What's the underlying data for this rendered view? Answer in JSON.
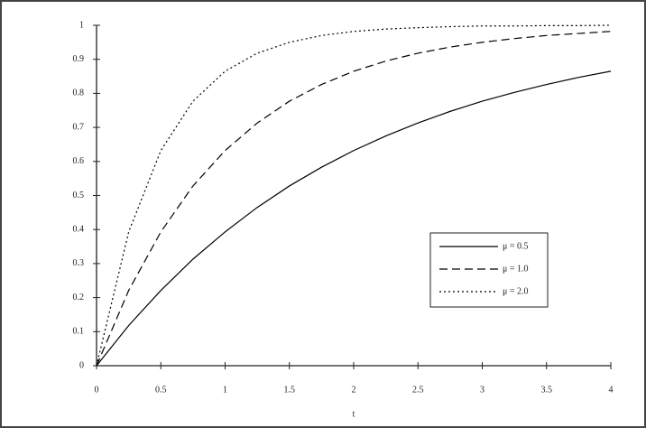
{
  "chart_data": {
    "type": "line",
    "x_label": "t",
    "x": [
      0,
      0.25,
      0.5,
      0.75,
      1,
      1.25,
      1.5,
      1.75,
      2,
      2.25,
      2.5,
      2.75,
      3,
      3.25,
      3.5,
      3.75,
      4
    ],
    "series": [
      {
        "name": "μ = 0.5",
        "color": "#000000",
        "dash": "solid",
        "values": [
          0,
          0.118,
          0.221,
          0.313,
          0.393,
          0.465,
          0.528,
          0.583,
          0.632,
          0.675,
          0.713,
          0.747,
          0.777,
          0.803,
          0.826,
          0.847,
          0.865
        ]
      },
      {
        "name": "μ = 1.0",
        "color": "#000000",
        "dash": "dashed",
        "values": [
          0,
          0.221,
          0.393,
          0.528,
          0.632,
          0.713,
          0.777,
          0.826,
          0.865,
          0.895,
          0.918,
          0.936,
          0.95,
          0.961,
          0.97,
          0.976,
          0.982
        ]
      },
      {
        "name": "μ = 2.0",
        "color": "#000000",
        "dash": "dotted",
        "values": [
          0,
          0.393,
          0.632,
          0.777,
          0.865,
          0.918,
          0.95,
          0.97,
          0.982,
          0.989,
          0.993,
          0.996,
          0.998,
          0.998,
          0.999,
          0.999,
          1.0
        ]
      }
    ],
    "xlim": [
      0,
      4
    ],
    "xticks": [
      0,
      0.5,
      1,
      1.5,
      2,
      2.5,
      3,
      3.5,
      4
    ],
    "ylim": [
      0,
      1
    ],
    "yticks": [
      0,
      0.1,
      0.2,
      0.3,
      0.4,
      0.5,
      0.6,
      0.7,
      0.8,
      0.9,
      1
    ],
    "grid": false,
    "legend": "lower-right"
  }
}
